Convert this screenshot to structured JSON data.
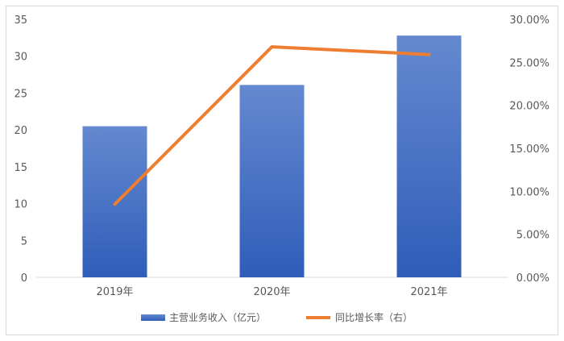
{
  "chart_data": {
    "type": "bar",
    "categories": [
      "2019年",
      "2020年",
      "2021年"
    ],
    "series": [
      {
        "name": "主营业务收入（亿元）",
        "type": "bar",
        "axis": "left",
        "values": [
          20.5,
          26.1,
          32.8
        ],
        "color": "#4472C4"
      },
      {
        "name": "同比增长率（右）",
        "type": "line",
        "axis": "right",
        "values": [
          0.085,
          0.268,
          0.259
        ],
        "color": "#ED7D31"
      }
    ],
    "y_left": {
      "min": 0,
      "max": 35,
      "step": 5,
      "ticks": [
        "0",
        "5",
        "10",
        "15",
        "20",
        "25",
        "30",
        "35"
      ]
    },
    "y_right": {
      "min": 0,
      "max": 0.3,
      "step": 0.05,
      "ticks": [
        "0.00%",
        "5.00%",
        "10.00%",
        "15.00%",
        "20.00%",
        "25.00%",
        "30.00%"
      ]
    },
    "grid": false,
    "legend_position": "bottom"
  }
}
